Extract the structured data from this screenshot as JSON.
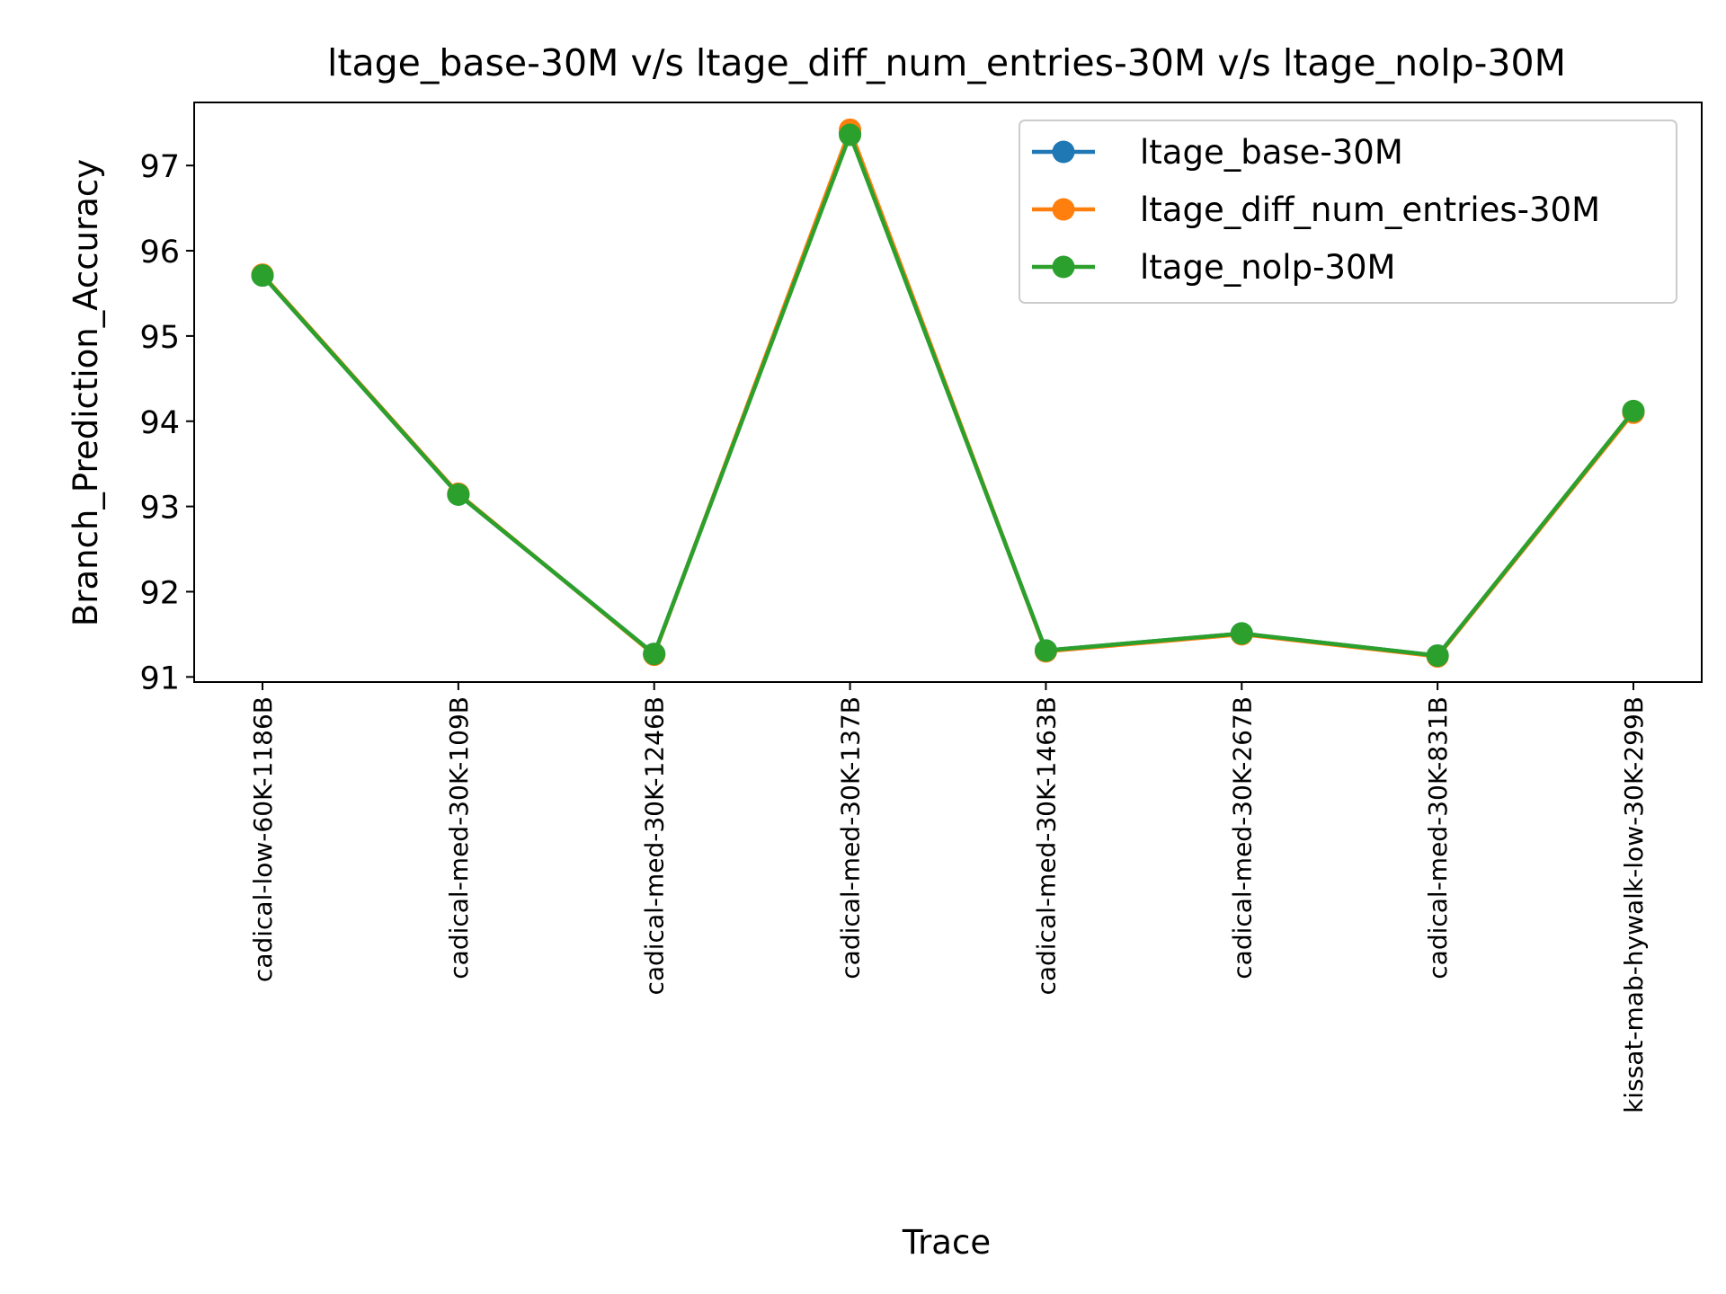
{
  "chart_data": {
    "type": "line",
    "title": "ltage_base-30M v/s ltage_diff_num_entries-30M v/s ltage_nolp-30M",
    "xlabel": "Trace",
    "ylabel": "Branch_Prediction_Accuracy",
    "categories": [
      "cadical-low-60K-1186B",
      "cadical-med-30K-109B",
      "cadical-med-30K-1246B",
      "cadical-med-30K-137B",
      "cadical-med-30K-1463B",
      "cadical-med-30K-267B",
      "cadical-med-30K-831B",
      "kissat-mab-hywalk-low-30K-299B"
    ],
    "ylim": [
      90.94,
      97.74
    ],
    "yticks": [
      91,
      92,
      93,
      94,
      95,
      96,
      97
    ],
    "grid": false,
    "legend_position": "top-right",
    "series": [
      {
        "name": "ltage_base-30M",
        "color": "#1f77b4",
        "values": [
          95.71,
          93.14,
          91.27,
          97.38,
          91.31,
          91.51,
          91.25,
          94.11
        ]
      },
      {
        "name": "ltage_diff_num_entries-30M",
        "color": "#ff7f0e",
        "values": [
          95.72,
          93.15,
          91.26,
          97.42,
          91.3,
          91.5,
          91.24,
          94.1
        ]
      },
      {
        "name": "ltage_nolp-30M",
        "color": "#2ca02c",
        "values": [
          95.71,
          93.14,
          91.27,
          97.36,
          91.31,
          91.51,
          91.25,
          94.12
        ]
      }
    ]
  }
}
